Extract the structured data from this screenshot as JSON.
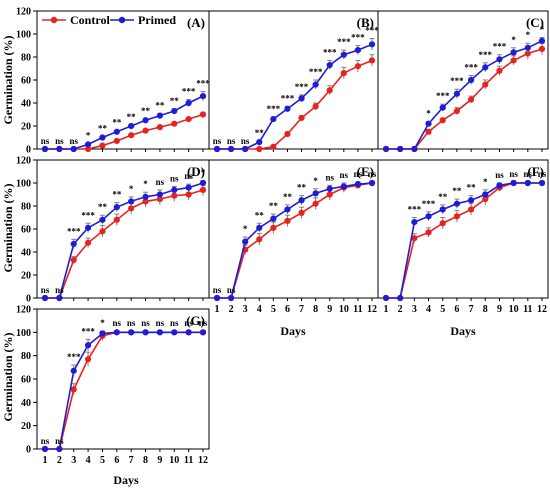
{
  "figure": {
    "ylabel": "Germination (%)",
    "xlabel": "Days",
    "legend": {
      "placement": "top-left of panel A",
      "entries": [
        "Control",
        "Primed"
      ]
    },
    "colors": {
      "control": "#e8221f",
      "primed": "#1d1dd6",
      "axis": "#000000",
      "error": "#7f7f7f"
    }
  },
  "chart_data": [
    {
      "type": "line",
      "panel": "(A)",
      "x": [
        1,
        2,
        3,
        4,
        5,
        6,
        7,
        8,
        9,
        10,
        11,
        12
      ],
      "ylim": [
        0,
        120
      ],
      "yticks": [
        0,
        20,
        40,
        60,
        80,
        100,
        120
      ],
      "series": [
        {
          "name": "Control",
          "values": [
            0,
            0,
            0,
            0,
            3,
            7,
            12,
            16,
            19,
            22,
            26,
            30
          ],
          "errors": [
            0,
            0,
            0,
            0,
            1,
            1,
            1,
            1,
            1,
            1,
            1,
            2
          ]
        },
        {
          "name": "Primed",
          "values": [
            0,
            0,
            0,
            4,
            10,
            15,
            20,
            25,
            29,
            33,
            40,
            46
          ],
          "errors": [
            0,
            0,
            0,
            1,
            1,
            1,
            1,
            1,
            2,
            2,
            3,
            4
          ]
        }
      ],
      "significance": [
        "ns",
        "ns",
        "ns",
        "*",
        "**",
        "**",
        "**",
        "**",
        "**",
        "**",
        "***",
        "***"
      ]
    },
    {
      "type": "line",
      "panel": "(B)",
      "x": [
        1,
        2,
        3,
        4,
        5,
        6,
        7,
        8,
        9,
        10,
        11,
        12
      ],
      "ylim": [
        0,
        120
      ],
      "series": [
        {
          "name": "Control",
          "values": [
            0,
            0,
            0,
            0,
            2,
            13,
            27,
            37,
            51,
            66,
            72,
            77
          ],
          "errors": [
            0,
            0,
            0,
            0,
            1,
            2,
            2,
            3,
            4,
            5,
            5,
            5
          ]
        },
        {
          "name": "Primed",
          "values": [
            0,
            0,
            0,
            6,
            26,
            35,
            44,
            56,
            73,
            82,
            86,
            91
          ],
          "errors": [
            0,
            0,
            0,
            1,
            2,
            2,
            3,
            4,
            4,
            4,
            4,
            5
          ]
        }
      ],
      "significance": [
        "ns",
        "ns",
        "ns",
        "**",
        "***",
        "***",
        "***",
        "***",
        "***",
        "***",
        "***",
        "***"
      ]
    },
    {
      "type": "line",
      "panel": "(C)",
      "x": [
        1,
        2,
        3,
        4,
        5,
        6,
        7,
        8,
        9,
        10,
        11,
        12
      ],
      "ylim": [
        0,
        120
      ],
      "series": [
        {
          "name": "Control",
          "values": [
            0,
            0,
            0,
            15,
            25,
            33,
            43,
            56,
            68,
            77,
            83,
            87
          ],
          "errors": [
            0,
            0,
            0,
            2,
            2,
            3,
            3,
            4,
            4,
            4,
            5,
            5
          ]
        },
        {
          "name": "Primed",
          "values": [
            0,
            0,
            0,
            22,
            36,
            48,
            60,
            71,
            78,
            84,
            88,
            94
          ],
          "errors": [
            0,
            0,
            0,
            2,
            3,
            4,
            4,
            4,
            4,
            4,
            4,
            3
          ]
        }
      ],
      "significance": [
        "",
        "",
        "",
        "*",
        "***",
        "***",
        "***",
        "***",
        "***",
        "*",
        "*",
        "*"
      ]
    },
    {
      "type": "line",
      "panel": "(D)",
      "x": [
        1,
        2,
        3,
        4,
        5,
        6,
        7,
        8,
        9,
        10,
        11,
        12
      ],
      "ylim": [
        0,
        120
      ],
      "yticks": [
        0,
        20,
        40,
        60,
        80,
        100,
        120
      ],
      "series": [
        {
          "name": "Control",
          "values": [
            0,
            0,
            33,
            48,
            58,
            68,
            78,
            84,
            86,
            89,
            90,
            94
          ],
          "errors": [
            0,
            0,
            3,
            4,
            5,
            5,
            5,
            5,
            5,
            5,
            5,
            5
          ]
        },
        {
          "name": "Primed",
          "values": [
            0,
            0,
            47,
            61,
            68,
            79,
            84,
            88,
            90,
            94,
            96,
            100
          ],
          "errors": [
            0,
            0,
            4,
            4,
            4,
            4,
            4,
            4,
            4,
            3,
            3,
            2
          ]
        }
      ],
      "significance": [
        "ns",
        "ns",
        "***",
        "***",
        "**",
        "**",
        "*",
        "*",
        "ns",
        "ns",
        "ns",
        "*"
      ]
    },
    {
      "type": "line",
      "panel": "(E)",
      "x": [
        1,
        2,
        3,
        4,
        5,
        6,
        7,
        8,
        9,
        10,
        11,
        12
      ],
      "ylim": [
        0,
        120
      ],
      "series": [
        {
          "name": "Control",
          "values": [
            0,
            0,
            42,
            51,
            61,
            67,
            74,
            82,
            90,
            96,
            98,
            100
          ],
          "errors": [
            0,
            0,
            4,
            5,
            5,
            5,
            5,
            5,
            5,
            4,
            3,
            1
          ]
        },
        {
          "name": "Primed",
          "values": [
            0,
            0,
            49,
            61,
            69,
            77,
            85,
            91,
            95,
            97,
            99,
            100
          ],
          "errors": [
            0,
            0,
            4,
            4,
            4,
            4,
            4,
            4,
            3,
            3,
            2,
            1
          ]
        }
      ],
      "significance": [
        "ns",
        "ns",
        "*",
        "**",
        "**",
        "**",
        "**",
        "*",
        "ns",
        "ns",
        "ns",
        "ns"
      ]
    },
    {
      "type": "line",
      "panel": "(F)",
      "x": [
        1,
        2,
        3,
        4,
        5,
        6,
        7,
        8,
        9,
        10,
        11,
        12
      ],
      "ylim": [
        0,
        120
      ],
      "series": [
        {
          "name": "Control",
          "values": [
            0,
            0,
            52,
            57,
            65,
            71,
            77,
            86,
            96,
            100,
            100,
            100
          ],
          "errors": [
            0,
            0,
            4,
            4,
            5,
            5,
            5,
            5,
            3,
            1,
            1,
            1
          ]
        },
        {
          "name": "Primed",
          "values": [
            0,
            0,
            66,
            71,
            77,
            82,
            85,
            90,
            98,
            100,
            100,
            100
          ],
          "errors": [
            0,
            0,
            4,
            4,
            4,
            4,
            4,
            4,
            2,
            1,
            1,
            1
          ]
        }
      ],
      "significance": [
        "",
        "",
        "***",
        "***",
        "**",
        "**",
        "**",
        "*",
        "ns",
        "ns",
        "ns",
        "ns"
      ]
    },
    {
      "type": "line",
      "panel": "(G)",
      "x": [
        1,
        2,
        3,
        4,
        5,
        6,
        7,
        8,
        9,
        10,
        11,
        12
      ],
      "ylim": [
        0,
        120
      ],
      "yticks": [
        0,
        20,
        40,
        60,
        80,
        100,
        120
      ],
      "series": [
        {
          "name": "Control",
          "values": [
            0,
            0,
            51,
            77,
            97,
            100,
            100,
            100,
            100,
            100,
            100,
            100
          ],
          "errors": [
            0,
            0,
            5,
            6,
            4,
            1,
            1,
            1,
            1,
            1,
            1,
            1
          ]
        },
        {
          "name": "Primed",
          "values": [
            0,
            0,
            67,
            89,
            99,
            100,
            100,
            100,
            100,
            100,
            100,
            100
          ],
          "errors": [
            0,
            0,
            5,
            5,
            2,
            1,
            1,
            1,
            1,
            1,
            1,
            1
          ]
        }
      ],
      "significance": [
        "ns",
        "ns",
        "***",
        "***",
        "*",
        "ns",
        "ns",
        "ns",
        "ns",
        "ns",
        "ns",
        "ns"
      ]
    }
  ]
}
